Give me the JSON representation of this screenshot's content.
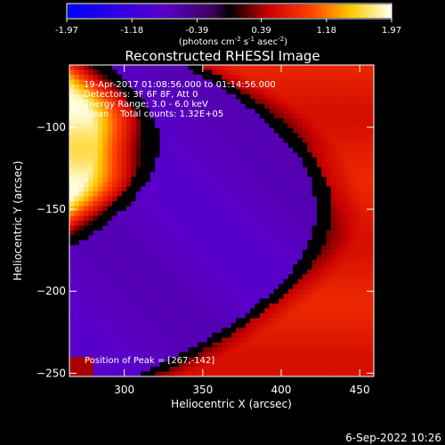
{
  "colorbar": {
    "ticks": [
      "-1.97",
      "-1.18",
      "-0.39",
      "0.39",
      "1.18",
      "1.97"
    ],
    "unit_base": "(photons cm",
    "unit_exp1": "-2",
    "unit_mid": " s",
    "unit_exp2": "-1",
    "unit_mid2": " asec",
    "unit_exp3": "-2",
    "unit_end": ")"
  },
  "chart_data": {
    "type": "heatmap",
    "title": "Reconstructed RHESSI Image",
    "xlabel": "Heliocentric X (arcsec)",
    "ylabel": "Heliocentric Y (arcsec)",
    "xlim": [
      265,
      459
    ],
    "ylim": [
      -252,
      -62
    ],
    "xticks": [
      300,
      350,
      400,
      450
    ],
    "yticks": [
      -100,
      -150,
      -200,
      -250
    ],
    "color_range": [
      -1.97,
      1.97
    ],
    "peak": [
      267,
      -142
    ],
    "grid": false,
    "annotations": [
      "19-Apr-2017 01:08:56.000 to 01:14:56.000",
      "Detectors: 3F 6F 8F, Att 0",
      "Energy Range: 3.0 - 6.0 keV",
      "Clean    Total counts: 1.32E+05"
    ],
    "peak_label": "Position of Peak = [267,-142]"
  },
  "footer": {
    "date": "6-Sep-2022 10:26"
  },
  "colors": {
    "background": "#000000",
    "text": "#ffffff"
  }
}
